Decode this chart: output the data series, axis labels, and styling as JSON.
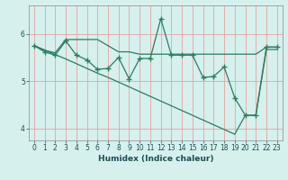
{
  "xlabel": "Humidex (Indice chaleur)",
  "x_values": [
    0,
    1,
    2,
    3,
    4,
    5,
    6,
    7,
    8,
    9,
    10,
    11,
    12,
    13,
    14,
    15,
    16,
    17,
    18,
    19,
    20,
    21,
    22,
    23
  ],
  "y_zigzag": [
    5.75,
    5.62,
    5.55,
    5.85,
    5.55,
    5.45,
    5.25,
    5.27,
    5.5,
    5.05,
    5.48,
    5.48,
    6.32,
    5.55,
    5.55,
    5.55,
    5.08,
    5.1,
    5.3,
    4.65,
    4.28,
    4.28,
    5.72,
    5.72
  ],
  "y_upper": [
    5.75,
    5.65,
    5.6,
    5.88,
    5.88,
    5.88,
    5.88,
    5.75,
    5.62,
    5.62,
    5.57,
    5.57,
    5.57,
    5.57,
    5.57,
    5.57,
    5.57,
    5.57,
    5.57,
    5.57,
    5.57,
    5.57,
    5.72,
    5.72
  ],
  "y_lower": [
    5.75,
    5.66,
    5.56,
    5.47,
    5.37,
    5.27,
    5.17,
    5.08,
    4.98,
    4.88,
    4.78,
    4.68,
    4.58,
    4.48,
    4.38,
    4.28,
    4.18,
    4.08,
    3.98,
    3.88,
    4.28,
    4.28,
    5.67,
    5.67
  ],
  "xlim": [
    -0.5,
    23.5
  ],
  "ylim": [
    3.75,
    6.6
  ],
  "yticks": [
    4,
    5,
    6
  ],
  "xticks": [
    0,
    1,
    2,
    3,
    4,
    5,
    6,
    7,
    8,
    9,
    10,
    11,
    12,
    13,
    14,
    15,
    16,
    17,
    18,
    19,
    20,
    21,
    22,
    23
  ],
  "bg_color": "#d6f0ee",
  "grid_color": "#e8a0a0",
  "line_color": "#2a7d5f",
  "font_color": "#1a5050",
  "tick_fontsize": 5.5,
  "xlabel_fontsize": 6.5
}
